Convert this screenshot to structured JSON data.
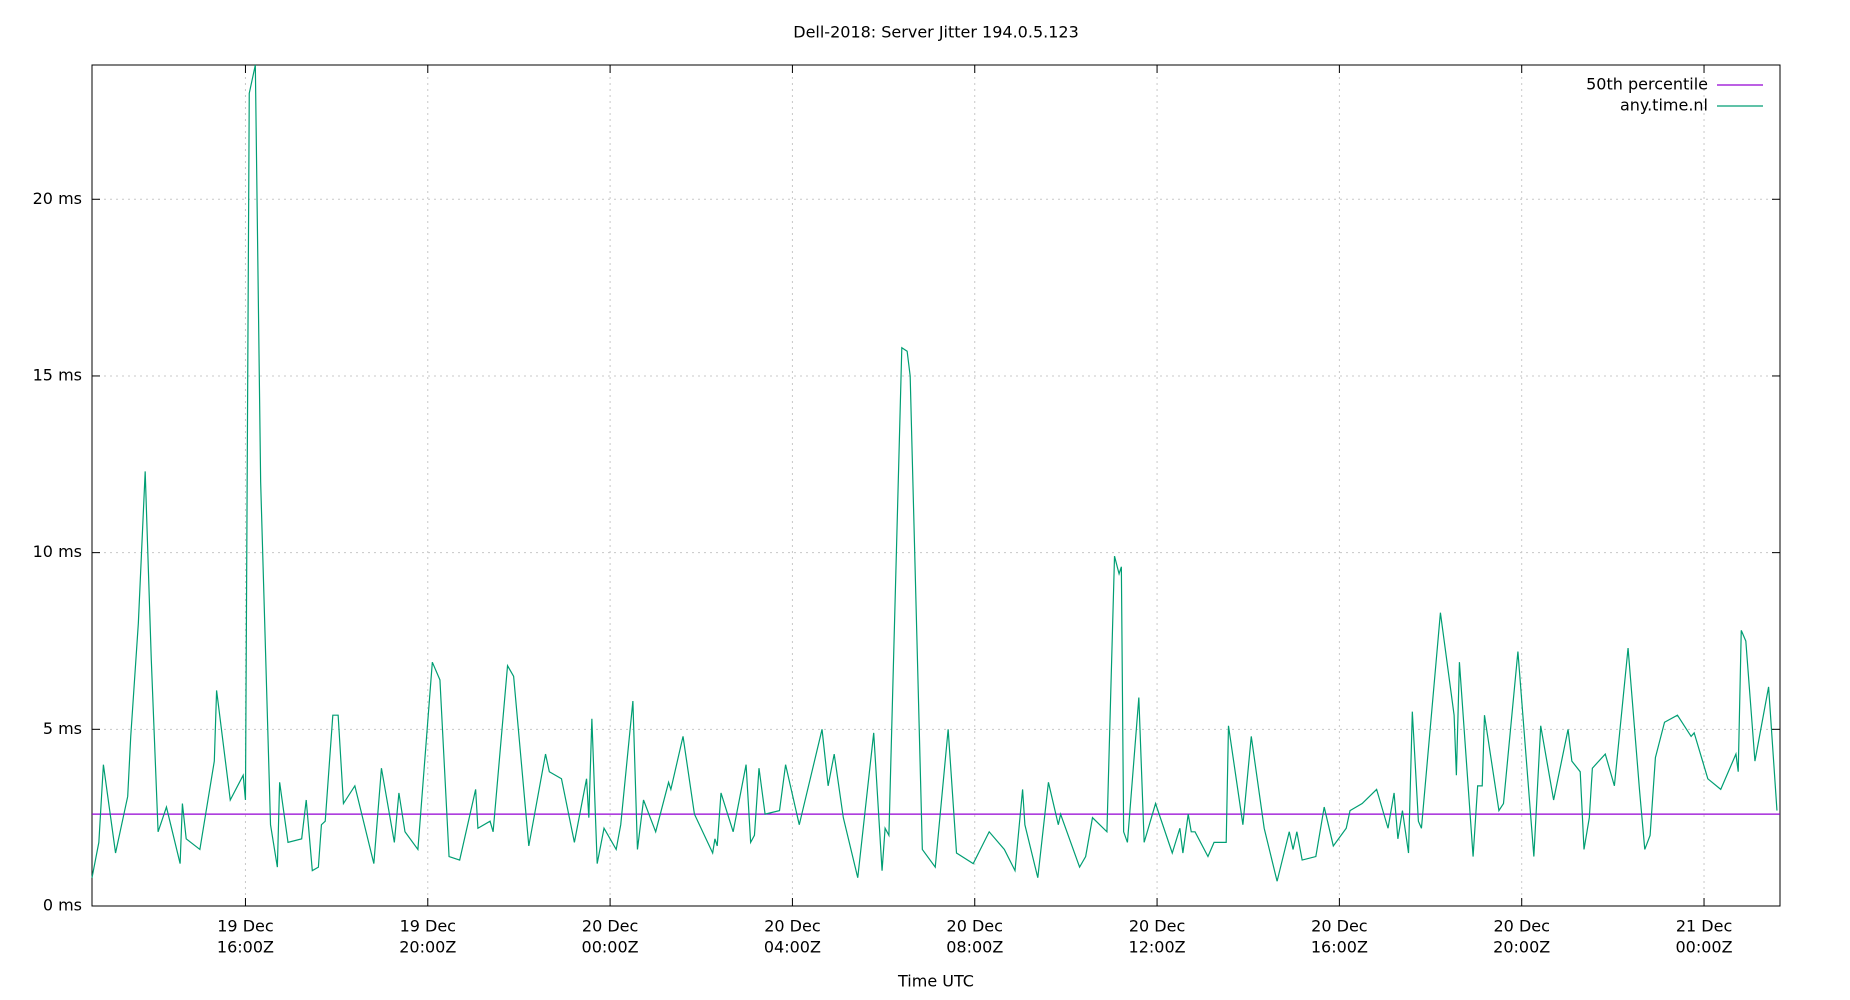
{
  "chart_data": {
    "type": "line",
    "title": "Dell-2018: Server Jitter 194.0.5.123",
    "x_label": "Time UTC",
    "xlim": [
      "19 Dec 12:38",
      "21 Dec 01:40"
    ],
    "xticks": [
      {
        "value": "19 Dec 16:00",
        "label": [
          "19 Dec",
          "16:00Z"
        ]
      },
      {
        "value": "19 Dec 20:00",
        "label": [
          "19 Dec",
          "20:00Z"
        ]
      },
      {
        "value": "20 Dec 00:00",
        "label": [
          "20 Dec",
          "00:00Z"
        ]
      },
      {
        "value": "20 Dec 04:00",
        "label": [
          "20 Dec",
          "04:00Z"
        ]
      },
      {
        "value": "20 Dec 08:00",
        "label": [
          "20 Dec",
          "08:00Z"
        ]
      },
      {
        "value": "20 Dec 12:00",
        "label": [
          "20 Dec",
          "12:00Z"
        ]
      },
      {
        "value": "20 Dec 16:00",
        "label": [
          "20 Dec",
          "16:00Z"
        ]
      },
      {
        "value": "20 Dec 20:00",
        "label": [
          "20 Dec",
          "20:00Z"
        ]
      },
      {
        "value": "21 Dec 00:00",
        "label": [
          "21 Dec",
          "00:00Z"
        ]
      }
    ],
    "ylim": [
      0,
      23.8
    ],
    "yticks": [
      {
        "value": 0,
        "label": "0 ms"
      },
      {
        "value": 5,
        "label": "5 ms"
      },
      {
        "value": 10,
        "label": "10 ms"
      },
      {
        "value": 15,
        "label": "15 ms"
      },
      {
        "value": 20,
        "label": "20 ms"
      }
    ],
    "grid": true,
    "legend": "top-right",
    "series": [
      {
        "name": "50th percentile",
        "color": "#9400d3",
        "x": [
          "19 Dec 12:38",
          "21 Dec 01:40"
        ],
        "values": [
          2.6,
          2.6
        ]
      },
      {
        "name": "any.time.nl",
        "color": "#009e73",
        "x": [
          "19 Dec 12:38",
          "19 Dec 12:47",
          "19 Dec 12:53",
          "19 Dec 13:09",
          "19 Dec 13:25",
          "19 Dec 13:29",
          "19 Dec 13:39",
          "19 Dec 13:48",
          "19 Dec 13:56",
          "19 Dec 14:05",
          "19 Dec 14:16",
          "19 Dec 14:34",
          "19 Dec 14:37",
          "19 Dec 14:42",
          "19 Dec 15:00",
          "19 Dec 15:19",
          "19 Dec 15:22",
          "19 Dec 15:40",
          "19 Dec 15:57",
          "19 Dec 16:00",
          "19 Dec 16:05",
          "19 Dec 16:13",
          "19 Dec 16:20",
          "19 Dec 16:33",
          "19 Dec 16:42",
          "19 Dec 16:45",
          "19 Dec 16:56",
          "19 Dec 17:14",
          "19 Dec 17:20",
          "19 Dec 17:28",
          "19 Dec 17:36",
          "19 Dec 17:40",
          "19 Dec 17:45",
          "19 Dec 17:55",
          "19 Dec 18:02",
          "19 Dec 18:09",
          "19 Dec 18:24",
          "19 Dec 18:49",
          "19 Dec 18:59",
          "19 Dec 19:16",
          "19 Dec 19:22",
          "19 Dec 19:30",
          "19 Dec 19:47",
          "19 Dec 20:06",
          "19 Dec 20:16",
          "19 Dec 20:28",
          "19 Dec 20:42",
          "19 Dec 21:03",
          "19 Dec 21:06",
          "19 Dec 21:22",
          "19 Dec 21:26",
          "19 Dec 21:45",
          "19 Dec 21:53",
          "19 Dec 22:13",
          "19 Dec 22:35",
          "19 Dec 22:40",
          "19 Dec 22:56",
          "19 Dec 23:13",
          "19 Dec 23:29",
          "19 Dec 23:32",
          "19 Dec 23:36",
          "19 Dec 23:43",
          "19 Dec 23:52",
          "20 Dec 00:08",
          "20 Dec 00:14",
          "20 Dec 00:30",
          "20 Dec 00:36",
          "20 Dec 00:44",
          "20 Dec 01:00",
          "20 Dec 01:17",
          "20 Dec 01:20",
          "20 Dec 01:36",
          "20 Dec 01:51",
          "20 Dec 02:15",
          "20 Dec 02:18",
          "20 Dec 02:21",
          "20 Dec 02:26",
          "20 Dec 02:42",
          "20 Dec 02:59",
          "20 Dec 03:05",
          "20 Dec 03:10",
          "20 Dec 03:16",
          "20 Dec 03:24",
          "20 Dec 03:43",
          "20 Dec 03:51",
          "20 Dec 04:09",
          "20 Dec 04:39",
          "20 Dec 04:47",
          "20 Dec 04:55",
          "20 Dec 05:07",
          "20 Dec 05:26",
          "20 Dec 05:47",
          "20 Dec 05:58",
          "20 Dec 06:02",
          "20 Dec 06:07",
          "20 Dec 06:24",
          "20 Dec 06:31",
          "20 Dec 06:35",
          "20 Dec 06:51",
          "20 Dec 07:08",
          "20 Dec 07:25",
          "20 Dec 07:36",
          "20 Dec 07:58",
          "20 Dec 08:19",
          "20 Dec 08:39",
          "20 Dec 08:53",
          "20 Dec 09:03",
          "20 Dec 09:06",
          "20 Dec 09:23",
          "20 Dec 09:37",
          "20 Dec 09:50",
          "20 Dec 09:53",
          "20 Dec 10:18",
          "20 Dec 10:26",
          "20 Dec 10:35",
          "20 Dec 10:54",
          "20 Dec 11:04",
          "20 Dec 11:10",
          "20 Dec 11:13",
          "20 Dec 11:16",
          "20 Dec 11:21",
          "20 Dec 11:36",
          "20 Dec 11:43",
          "20 Dec 11:58",
          "20 Dec 12:20",
          "20 Dec 12:30",
          "20 Dec 12:34",
          "20 Dec 12:41",
          "20 Dec 12:45",
          "20 Dec 12:50",
          "20 Dec 13:07",
          "20 Dec 13:15",
          "20 Dec 13:31",
          "20 Dec 13:34",
          "20 Dec 13:53",
          "20 Dec 14:04",
          "20 Dec 14:21",
          "20 Dec 14:38",
          "20 Dec 14:54",
          "20 Dec 14:59",
          "20 Dec 15:04",
          "20 Dec 15:11",
          "20 Dec 15:29",
          "20 Dec 15:40",
          "20 Dec 15:52",
          "20 Dec 16:09",
          "20 Dec 16:14",
          "20 Dec 16:30",
          "20 Dec 16:49",
          "20 Dec 17:04",
          "20 Dec 17:12",
          "20 Dec 17:17",
          "20 Dec 17:23",
          "20 Dec 17:31",
          "20 Dec 17:36",
          "20 Dec 17:44",
          "20 Dec 17:48",
          "20 Dec 18:13",
          "20 Dec 18:31",
          "20 Dec 18:34",
          "20 Dec 18:38",
          "20 Dec 18:56",
          "20 Dec 19:02",
          "20 Dec 19:08",
          "20 Dec 19:11",
          "20 Dec 19:30",
          "20 Dec 19:36",
          "20 Dec 19:55",
          "20 Dec 20:16",
          "20 Dec 20:25",
          "20 Dec 20:42",
          "20 Dec 21:01",
          "20 Dec 21:06",
          "20 Dec 21:17",
          "20 Dec 21:22",
          "20 Dec 21:29",
          "20 Dec 21:33",
          "20 Dec 21:50",
          "20 Dec 22:02",
          "20 Dec 22:20",
          "20 Dec 22:35",
          "20 Dec 22:42",
          "20 Dec 22:49",
          "20 Dec 22:56",
          "20 Dec 23:08",
          "20 Dec 23:25",
          "20 Dec 23:43",
          "20 Dec 23:47",
          "21 Dec 00:05",
          "21 Dec 00:22",
          "21 Dec 00:42",
          "21 Dec 00:45",
          "21 Dec 00:49",
          "21 Dec 00:55",
          "21 Dec 01:07",
          "21 Dec 01:25",
          "21 Dec 01:36"
        ],
        "values": [
          0.8,
          1.8,
          4.0,
          1.5,
          3.1,
          4.8,
          8,
          12.3,
          7,
          2.1,
          2.8,
          1.2,
          2.9,
          1.9,
          1.6,
          4.1,
          6.1,
          3.0,
          3.7,
          3.0,
          23.0,
          23.8,
          12,
          2.3,
          1.1,
          3.5,
          1.8,
          1.9,
          3.0,
          1.0,
          1.1,
          2.3,
          2.4,
          5.4,
          5.4,
          2.9,
          3.4,
          1.2,
          3.9,
          1.8,
          3.2,
          2.1,
          1.6,
          6.9,
          6.4,
          1.4,
          1.3,
          3.3,
          2.2,
          2.4,
          2.1,
          6.8,
          6.5,
          1.7,
          4.3,
          3.8,
          3.6,
          1.8,
          3.6,
          2.5,
          5.3,
          1.2,
          2.2,
          1.6,
          2.3,
          5.8,
          1.6,
          3.0,
          2.1,
          3.5,
          3.3,
          4.8,
          2.6,
          1.5,
          1.9,
          1.7,
          3.2,
          2.1,
          4.0,
          1.8,
          2.0,
          3.9,
          2.6,
          2.7,
          4.0,
          2.3,
          5.0,
          3.4,
          4.3,
          2.5,
          0.8,
          4.9,
          1.0,
          2.2,
          2.0,
          15.8,
          15.7,
          15.0,
          1.6,
          1.1,
          5.0,
          1.5,
          1.2,
          2.1,
          1.6,
          1.0,
          3.3,
          2.3,
          0.8,
          3.5,
          2.3,
          2.6,
          1.1,
          1.4,
          2.5,
          2.1,
          9.9,
          9.4,
          9.6,
          2.1,
          1.8,
          5.9,
          1.8,
          2.9,
          1.5,
          2.2,
          1.5,
          2.6,
          2.1,
          2.1,
          1.4,
          1.8,
          1.8,
          5.1,
          2.3,
          4.8,
          2.2,
          0.7,
          2.1,
          1.6,
          2.1,
          1.3,
          1.4,
          2.8,
          1.7,
          2.2,
          2.7,
          2.9,
          3.3,
          2.2,
          3.2,
          1.9,
          2.7,
          1.5,
          5.5,
          2.4,
          2.2,
          8.3,
          5.4,
          3.7,
          6.9,
          1.4,
          3.4,
          3.4,
          5.4,
          2.7,
          2.9,
          7.2,
          1.4,
          5.1,
          3.0,
          5.0,
          4.1,
          3.8,
          1.6,
          2.5,
          3.9,
          4.3,
          3.4,
          7.3,
          3.3,
          1.6,
          2.0,
          4.2,
          5.2,
          5.4,
          4.8,
          4.9,
          3.6,
          3.3,
          4.3,
          3.8,
          7.8,
          7.5,
          4.1,
          6.2,
          2.7
        ]
      }
    ]
  }
}
